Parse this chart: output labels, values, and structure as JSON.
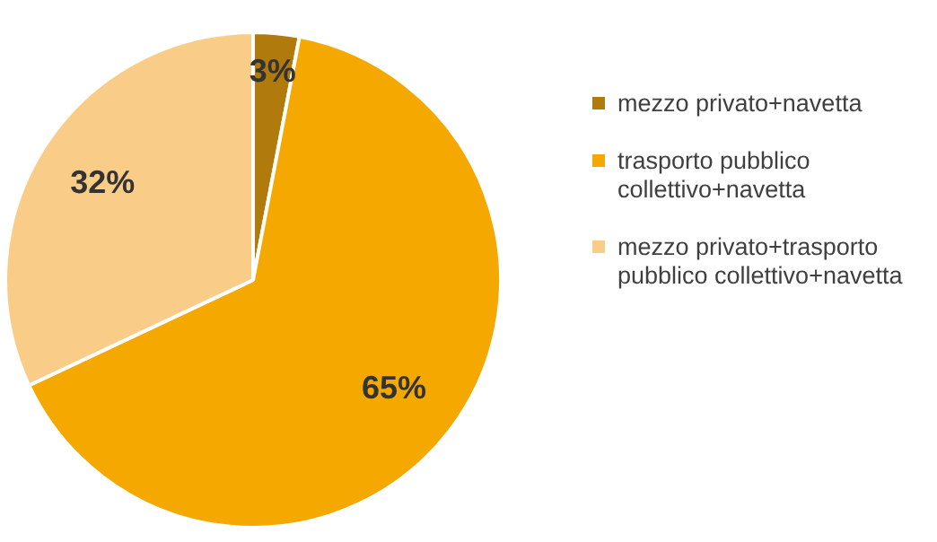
{
  "chart_data": {
    "type": "pie",
    "categories": [
      "mezzo privato+navetta",
      "trasporto pubblico collettivo+navetta",
      "mezzo privato+trasporto pubblico collettivo+navetta"
    ],
    "values": [
      3,
      65,
      32
    ],
    "colors": [
      "#b07a0c",
      "#f5a800",
      "#f9cd88"
    ],
    "value_labels": [
      "3%",
      "65%",
      "32%"
    ],
    "legend": "right"
  }
}
